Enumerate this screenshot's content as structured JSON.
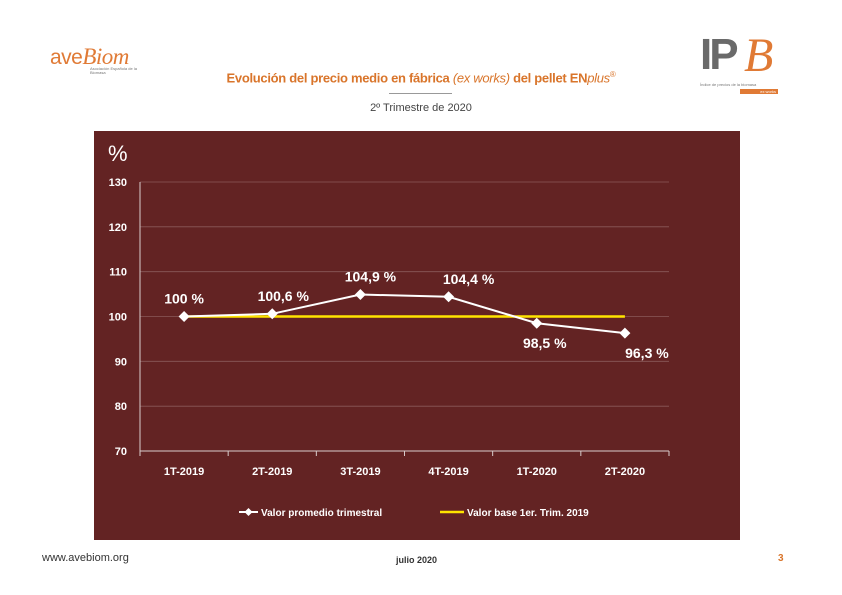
{
  "header": {
    "logo_left_text": "ave",
    "logo_left_b": "Biom",
    "logo_left_tagline": "Asociación Española de la Biomasa",
    "logo_right_ip": "IP",
    "logo_right_b": "B",
    "logo_right_tagline": "Índice de precios de la biomasa",
    "logo_right_tag2": "ex works",
    "title_main": "Evolución del precio medio en fábrica ",
    "title_italic": "(ex works)",
    "title_mid": " del pellet EN",
    "title_plus": "plus",
    "title_reg": "®",
    "subtitle": "2º Trimestre de 2020"
  },
  "colors": {
    "panel_bg": "#632323",
    "series_line": "#ffffff",
    "base_line": "#ffe400",
    "accent": "#d9752b"
  },
  "chart_data": {
    "type": "line",
    "unit_label": "%",
    "categories": [
      "1T-2019",
      "2T-2019",
      "3T-2019",
      "4T-2019",
      "1T-2020",
      "2T-2020"
    ],
    "series": [
      {
        "name": "Valor promedio trimestral",
        "values": [
          100,
          100.6,
          104.9,
          104.4,
          98.5,
          96.3
        ],
        "labels": [
          "100 %",
          "100,6 %",
          "104,9 %",
          "104,4 %",
          "98,5 %",
          "96,3 %"
        ],
        "color": "#ffffff",
        "marker": "diamond"
      },
      {
        "name": "Valor base 1er. Trim. 2019",
        "values": [
          100,
          100,
          100,
          100,
          100,
          100
        ],
        "color": "#ffe400"
      }
    ],
    "ylim": [
      70,
      130
    ],
    "yticks": [
      "70",
      "80",
      "90",
      "100",
      "110",
      "120",
      "130"
    ],
    "grid": true,
    "legend_position": "bottom"
  },
  "footer": {
    "url": "www.avebiom.org",
    "date": "julio 2020",
    "page": "3"
  }
}
